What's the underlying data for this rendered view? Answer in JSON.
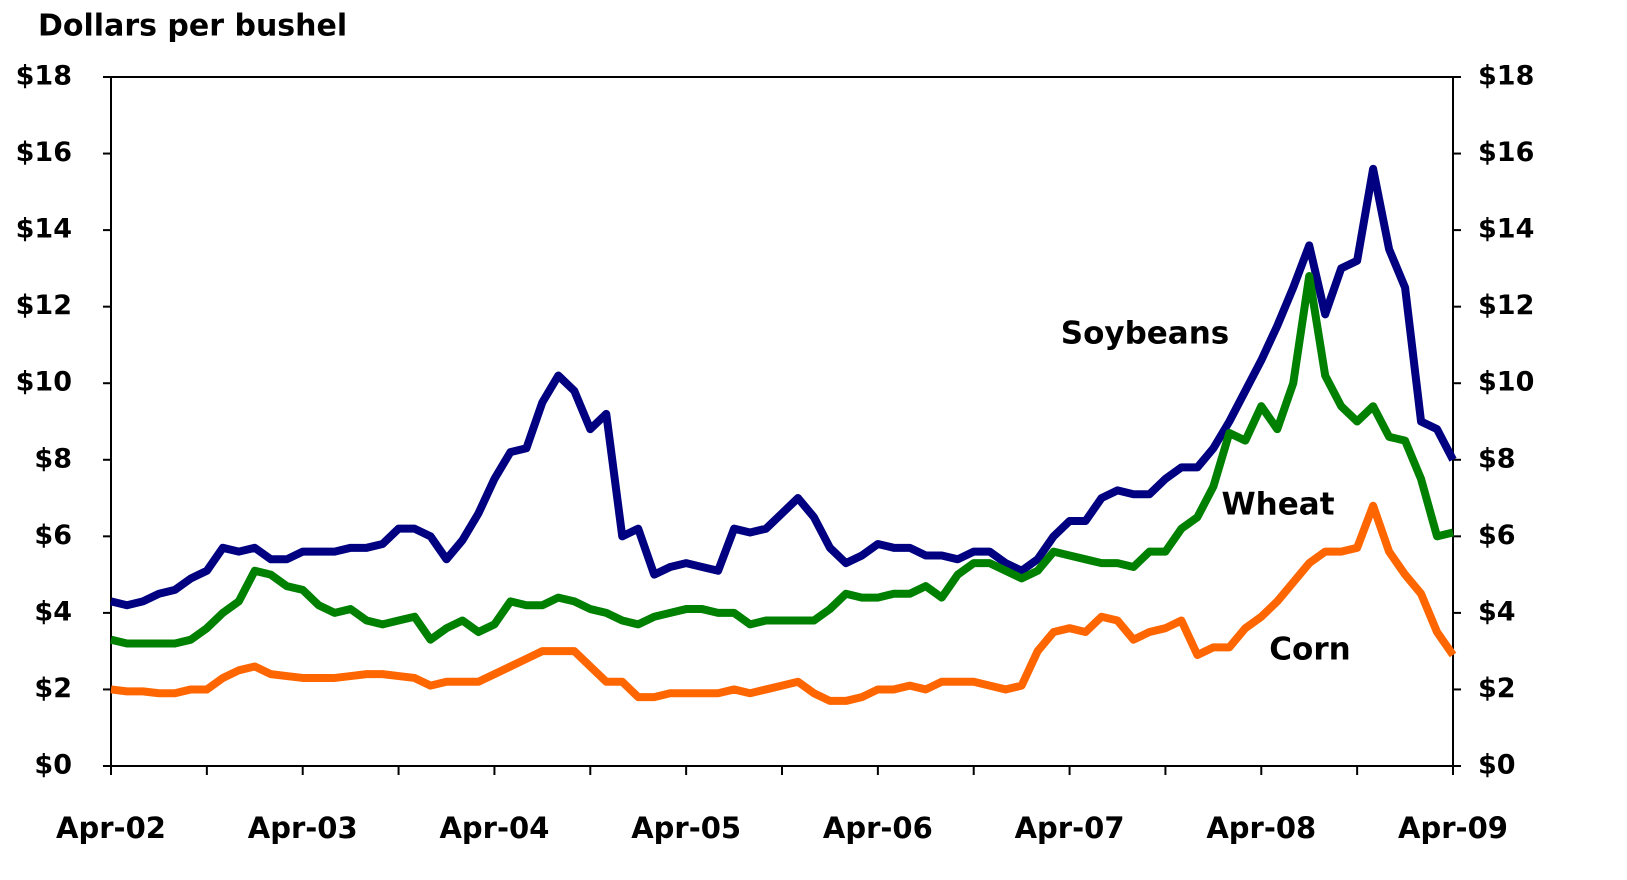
{
  "chart_data": {
    "type": "line",
    "y_label": "Dollars per bushel",
    "categories": [
      "Apr-02",
      null,
      null,
      null,
      null,
      null,
      null,
      null,
      null,
      null,
      null,
      null,
      "Apr-03",
      null,
      null,
      null,
      null,
      null,
      null,
      null,
      null,
      null,
      null,
      null,
      "Apr-04",
      null,
      null,
      null,
      null,
      null,
      null,
      null,
      null,
      null,
      null,
      null,
      "Apr-05",
      null,
      null,
      null,
      null,
      null,
      null,
      null,
      null,
      null,
      null,
      null,
      "Apr-06",
      null,
      null,
      null,
      null,
      null,
      null,
      null,
      null,
      null,
      null,
      null,
      "Apr-07",
      null,
      null,
      null,
      null,
      null,
      null,
      null,
      null,
      null,
      null,
      null,
      "Apr-08",
      null,
      null,
      null,
      null,
      null,
      null,
      null,
      null,
      null,
      null,
      null,
      "Apr-09"
    ],
    "series": [
      {
        "name": "Soybeans",
        "color": "#000080",
        "values": [
          4.3,
          4.2,
          4.3,
          4.5,
          4.6,
          4.9,
          5.1,
          5.7,
          5.6,
          5.7,
          5.4,
          5.4,
          5.6,
          5.6,
          5.6,
          5.7,
          5.7,
          5.8,
          6.2,
          6.2,
          6.0,
          5.4,
          5.9,
          6.6,
          7.5,
          8.2,
          8.3,
          9.5,
          10.2,
          9.8,
          8.8,
          9.2,
          6.0,
          6.2,
          5.0,
          5.2,
          5.3,
          5.2,
          5.1,
          6.2,
          6.1,
          6.2,
          6.6,
          7.0,
          6.5,
          5.7,
          5.3,
          5.5,
          5.8,
          5.7,
          5.7,
          5.5,
          5.5,
          5.4,
          5.6,
          5.6,
          5.3,
          5.1,
          5.4,
          6.0,
          6.4,
          6.4,
          7.0,
          7.2,
          7.1,
          7.1,
          7.5,
          7.8,
          7.8,
          8.3,
          9.0,
          9.8,
          10.6,
          11.5,
          12.5,
          13.6,
          11.8,
          13.0,
          13.2,
          15.6,
          13.5,
          12.5,
          9.0,
          8.8,
          8.0
        ]
      },
      {
        "name": "Wheat",
        "color": "#008000",
        "values": [
          3.3,
          3.2,
          3.2,
          3.2,
          3.2,
          3.3,
          3.6,
          4.0,
          4.3,
          5.1,
          5.0,
          4.7,
          4.6,
          4.2,
          4.0,
          4.1,
          3.8,
          3.7,
          3.8,
          3.9,
          3.3,
          3.6,
          3.8,
          3.5,
          3.7,
          4.3,
          4.2,
          4.2,
          4.4,
          4.3,
          4.1,
          4.0,
          3.8,
          3.7,
          3.9,
          4.0,
          4.1,
          4.1,
          4.0,
          4.0,
          3.7,
          3.8,
          3.8,
          3.8,
          3.8,
          4.1,
          4.5,
          4.4,
          4.4,
          4.5,
          4.5,
          4.7,
          4.4,
          5.0,
          5.3,
          5.3,
          5.1,
          4.9,
          5.1,
          5.6,
          5.5,
          5.4,
          5.3,
          5.3,
          5.2,
          5.6,
          5.6,
          6.2,
          6.5,
          7.3,
          8.7,
          8.5,
          9.4,
          8.8,
          10.0,
          12.8,
          10.2,
          9.4,
          9.0,
          9.4,
          8.6,
          8.5,
          7.5,
          6.0,
          6.1
        ]
      },
      {
        "name": "Corn",
        "color": "#ff6600",
        "values": [
          2.0,
          1.95,
          1.95,
          1.9,
          1.9,
          2.0,
          2.0,
          2.3,
          2.5,
          2.6,
          2.4,
          2.35,
          2.3,
          2.3,
          2.3,
          2.35,
          2.4,
          2.4,
          2.35,
          2.3,
          2.1,
          2.2,
          2.2,
          2.2,
          2.4,
          2.6,
          2.8,
          3.0,
          3.0,
          3.0,
          2.6,
          2.2,
          2.2,
          1.8,
          1.8,
          1.9,
          1.9,
          1.9,
          1.9,
          2.0,
          1.9,
          2.0,
          2.1,
          2.2,
          1.9,
          1.7,
          1.7,
          1.8,
          2.0,
          2.0,
          2.1,
          2.0,
          2.2,
          2.2,
          2.2,
          2.1,
          2.0,
          2.1,
          3.0,
          3.5,
          3.6,
          3.5,
          3.9,
          3.8,
          3.3,
          3.5,
          3.6,
          3.8,
          2.9,
          3.1,
          3.1,
          3.6,
          3.9,
          4.3,
          4.8,
          5.3,
          5.6,
          5.6,
          5.7,
          6.8,
          5.6,
          5.0,
          4.5,
          3.5,
          2.9
        ]
      }
    ],
    "ylim": [
      0,
      18
    ],
    "yticks": [
      {
        "value": 0,
        "label": "$0"
      },
      {
        "value": 2,
        "label": "$2"
      },
      {
        "value": 4,
        "label": "$4"
      },
      {
        "value": 6,
        "label": "$6"
      },
      {
        "value": 8,
        "label": "$8"
      },
      {
        "value": 10,
        "label": "$10"
      },
      {
        "value": 12,
        "label": "$12"
      },
      {
        "value": 14,
        "label": "$14"
      },
      {
        "value": 16,
        "label": "$16"
      },
      {
        "value": 18,
        "label": "$18"
      }
    ],
    "grid": false
  }
}
